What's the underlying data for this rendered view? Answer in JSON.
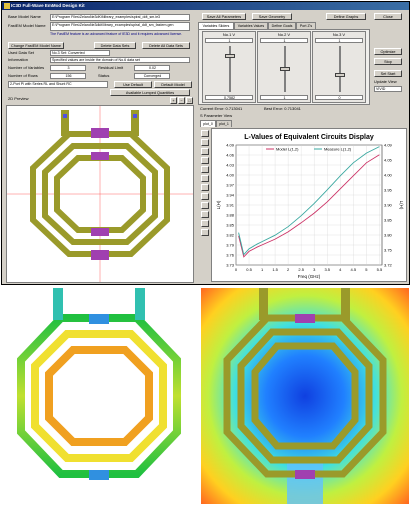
{
  "app": {
    "title": "IC3D Full-Wave EmMod Design Kit"
  },
  "form": {
    "base_model_label": "Base Model Name",
    "base_model_value": "E:\\Program Files\\Zeland\\ie3dKit\\library_examples\\spiral_ddt_sm.ie3",
    "fasthit_label": "FastEM Model Name",
    "fasthit_value": "E:\\Program Files\\Zeland\\ie3dkit\\library_examples\\spiral_ddt_sm_fastem.gen",
    "fasthit_note": "The FastEM feature is an advanced feature of IE3D and it requires advanced license.",
    "change_button": "Change FastEM Model Name",
    "delete_button": "Delete Data Sets",
    "delete_all_button": "Delete All Data Sets",
    "used_data_set_label": "Used Data Set",
    "used_data_set_value": "No.3 Set: Converted",
    "information_label": "Information",
    "information_value": "Specified values are inside the domain of No.6 data set",
    "num_variables_label": "Number of Variables",
    "num_variables_value": "3",
    "residual_label": "Residual Limit",
    "residual_value": "0.02",
    "num_rows_label": "Number of Rows",
    "num_rows_value": "156",
    "status_label": "Status",
    "status_value": "Converged",
    "mode_select": "2-Port Pi with Series RL and Shunt RC",
    "use_default_button": "Use Default",
    "default_model_button": "Default Model",
    "available_button": "Available Lumped Quantities"
  },
  "top_buttons": {
    "save": "Save All Parameters",
    "save_geometry": "Save Geometry",
    "define_graphs": "Define Graphs",
    "close": "Close"
  },
  "var_tabs": [
    "Variables Sliders",
    "Variables Values",
    "Define Goals",
    "Port Z's"
  ],
  "variables": [
    {
      "name": "No.1 V",
      "value": "1",
      "readout": "0.7582",
      "level": 0.8
    },
    {
      "name": "No.2 V",
      "value": "1",
      "readout": "1",
      "level": 0.5
    },
    {
      "name": "No.3 V",
      "value": "1",
      "readout": "0",
      "level": 0.35
    }
  ],
  "right_controls": {
    "optimize": "Optimize",
    "stop": "Stop",
    "set_start": "Set Start",
    "update_label": "Update View",
    "update_value": "VIVID"
  },
  "errors": {
    "current": "Current Error: 0.713041",
    "best": "Best Error: 0.713041"
  },
  "preview": {
    "label": "2D Preview"
  },
  "plot_tabs": [
    "plot_0",
    "plot_1"
  ],
  "parameter_view_label": "S Parameter View",
  "chart_data": {
    "type": "line",
    "title": "L-Values of Equivalent Circuits Display",
    "xlabel": "Freq (GHz)",
    "ylabel_left": "L(H)",
    "ylabel_right": "L(H)",
    "x": [
      0.1,
      0.3,
      0.5,
      0.8,
      1.0,
      1.5,
      2.0,
      2.5,
      3.0,
      3.5,
      4.0,
      4.5,
      5.0,
      5.5
    ],
    "xlim": [
      0,
      5.6
    ],
    "xticks": [
      "0",
      "0.5",
      "1",
      "1.5",
      "2",
      "2.5",
      "3",
      "3.5",
      "4",
      "4.5",
      "5",
      "5.5"
    ],
    "ylim": [
      3.72,
      4.09
    ],
    "yticks": [
      "4.09",
      "4.06",
      "4.03",
      "4.00",
      "3.97",
      "3.94",
      "3.91",
      "3.88",
      "3.85",
      "3.82",
      "3.79",
      "3.76",
      "3.73"
    ],
    "yticks_right": [
      "4.09",
      "4.05",
      "4.00",
      "3.95",
      "3.90",
      "3.85",
      "3.80",
      "3.75",
      "3.72"
    ],
    "series": [
      {
        "name": "Model L(1,2)",
        "color": "#cc3366",
        "values": [
          3.81,
          3.745,
          3.762,
          3.775,
          3.782,
          3.8,
          3.822,
          3.85,
          3.88,
          3.915,
          3.955,
          3.995,
          4.035,
          4.06
        ]
      },
      {
        "name": "Measure L(1,2)",
        "color": "#3aa8a0",
        "values": [
          3.82,
          3.752,
          3.77,
          3.784,
          3.792,
          3.812,
          3.838,
          3.872,
          3.91,
          3.952,
          3.995,
          4.035,
          4.065,
          4.085
        ]
      }
    ]
  },
  "colors": {
    "accent": "#0a246a",
    "coil_trace": "#9a9a2a",
    "crossover": "#a040b0",
    "via": "#5050e0"
  }
}
